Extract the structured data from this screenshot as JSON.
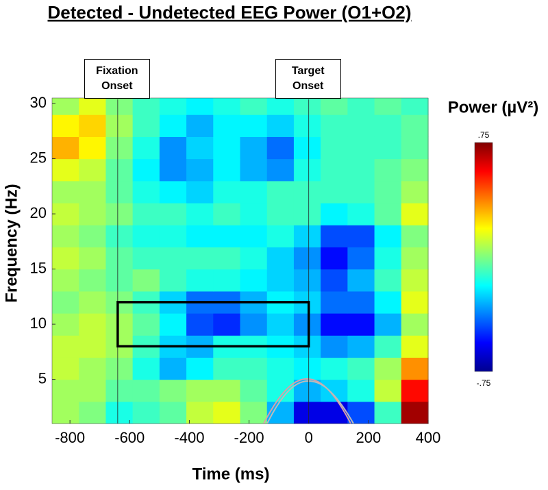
{
  "chart_data": {
    "type": "heatmap",
    "title": "Detected - Undetected EEG Power (O1+O2)",
    "xlabel": "Time (ms)",
    "ylabel": "Frequency (Hz)",
    "colorbar_label": "Power (µV²)",
    "colormap": "jet",
    "clim": [
      -0.75,
      0.75
    ],
    "cticks": [
      {
        "value": 0.75,
        "label": ".75"
      },
      {
        "value": -0.75,
        "label": "-.75"
      }
    ],
    "xlim": [
      -860,
      400
    ],
    "ylim": [
      1,
      30.5
    ],
    "xticks": [
      -800,
      -600,
      -400,
      -200,
      0,
      200,
      400
    ],
    "yticks": [
      5,
      10,
      15,
      20,
      25,
      30
    ],
    "xbins": [
      -860,
      -770,
      -680,
      -590,
      -500,
      -410,
      -320,
      -230,
      -140,
      -50,
      40,
      130,
      220,
      310,
      400
    ],
    "ybins": [
      1,
      3,
      5,
      7,
      9,
      11,
      13,
      15,
      17,
      19,
      21,
      23,
      25,
      27,
      29,
      30.5
    ],
    "z": [
      [
        0.05,
        0.0,
        -0.15,
        -0.1,
        -0.05,
        0.1,
        0.15,
        0.0,
        -0.3,
        -0.6,
        -0.6,
        -0.45,
        -0.1,
        0.7
      ],
      [
        0.05,
        0.05,
        -0.05,
        -0.05,
        0.0,
        0.05,
        0.05,
        -0.05,
        -0.15,
        -0.3,
        -0.25,
        -0.15,
        0.1,
        0.55
      ],
      [
        0.1,
        0.05,
        0.0,
        -0.15,
        -0.3,
        -0.2,
        -0.1,
        -0.1,
        -0.15,
        -0.2,
        -0.15,
        -0.1,
        0.05,
        0.35
      ],
      [
        0.1,
        0.1,
        0.05,
        -0.1,
        -0.25,
        -0.3,
        -0.15,
        -0.15,
        -0.2,
        -0.25,
        -0.35,
        -0.3,
        -0.1,
        0.15
      ],
      [
        0.05,
        0.1,
        0.05,
        -0.05,
        -0.2,
        -0.45,
        -0.5,
        -0.35,
        -0.25,
        -0.35,
        -0.55,
        -0.55,
        -0.3,
        0.05
      ],
      [
        0.0,
        0.05,
        0.0,
        -0.1,
        -0.25,
        -0.4,
        -0.4,
        -0.3,
        -0.2,
        -0.25,
        -0.4,
        -0.4,
        -0.2,
        0.15
      ],
      [
        0.05,
        0.0,
        -0.05,
        0.0,
        -0.1,
        -0.15,
        -0.15,
        -0.2,
        -0.25,
        -0.3,
        -0.45,
        -0.3,
        -0.1,
        0.1
      ],
      [
        0.1,
        0.05,
        -0.05,
        -0.1,
        -0.1,
        -0.1,
        -0.1,
        -0.15,
        -0.25,
        -0.35,
        -0.55,
        -0.4,
        -0.15,
        0.05
      ],
      [
        0.05,
        0.0,
        -0.1,
        -0.15,
        -0.15,
        -0.2,
        -0.2,
        -0.2,
        -0.15,
        -0.25,
        -0.45,
        -0.45,
        -0.2,
        0.0
      ],
      [
        0.1,
        0.05,
        0.0,
        -0.1,
        -0.1,
        -0.15,
        -0.1,
        -0.15,
        -0.1,
        -0.1,
        -0.2,
        -0.15,
        -0.05,
        0.15
      ],
      [
        0.05,
        0.05,
        -0.05,
        -0.15,
        -0.2,
        -0.25,
        -0.15,
        -0.15,
        -0.1,
        -0.1,
        -0.1,
        -0.1,
        -0.05,
        0.05
      ],
      [
        0.15,
        0.1,
        -0.05,
        -0.2,
        -0.35,
        -0.3,
        -0.2,
        -0.3,
        -0.35,
        -0.15,
        -0.1,
        -0.1,
        -0.05,
        0.0
      ],
      [
        0.3,
        0.2,
        0.0,
        -0.15,
        -0.35,
        -0.25,
        -0.2,
        -0.3,
        -0.4,
        -0.2,
        -0.1,
        -0.1,
        -0.1,
        -0.05
      ],
      [
        0.2,
        0.25,
        0.05,
        -0.1,
        -0.2,
        -0.3,
        -0.2,
        -0.2,
        -0.25,
        -0.15,
        -0.1,
        -0.1,
        -0.1,
        -0.05
      ],
      [
        0.05,
        0.15,
        0.0,
        -0.1,
        -0.15,
        -0.2,
        -0.15,
        -0.1,
        -0.15,
        -0.1,
        -0.05,
        -0.1,
        -0.05,
        -0.1
      ]
    ],
    "markers": [
      {
        "x": -640,
        "label": "Fixation Onset"
      },
      {
        "x": 0,
        "label": "Target Onset"
      }
    ],
    "box": {
      "x": [
        -640,
        0
      ],
      "y": [
        8,
        12
      ]
    }
  }
}
